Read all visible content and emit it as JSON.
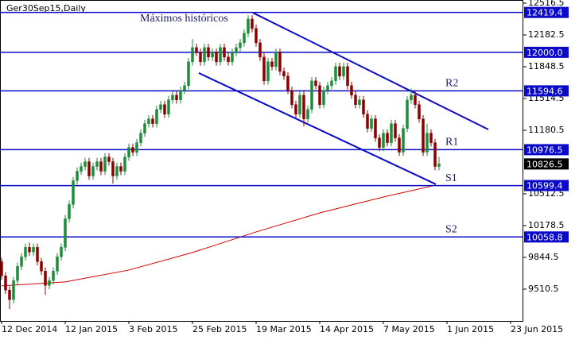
{
  "chart_data": {
    "type": "candlestick",
    "title": "Ger30Sep15,Daily",
    "annotation": "Máximos históricos",
    "xlim": [
      -0.4,
      131.2
    ],
    "ylim": [
      9176,
      12550
    ],
    "yticks": [
      12516.5,
      12182.5,
      11848.5,
      11514.5,
      11180.5,
      10512.5,
      10178.5,
      9844.5,
      9510.5
    ],
    "xticks": [
      {
        "value": 0,
        "label": "12 Dec 2014"
      },
      {
        "value": 16,
        "label": "12 Jan 2015"
      },
      {
        "value": 32,
        "label": "3 Feb 2015"
      },
      {
        "value": 48,
        "label": "25 Feb 2015"
      },
      {
        "value": 64,
        "label": "19 Mar 2015"
      },
      {
        "value": 80,
        "label": "14 Apr 2015"
      },
      {
        "value": 96,
        "label": "7 May 2015"
      },
      {
        "value": 112,
        "label": "1 Jun 2015"
      },
      {
        "value": 128,
        "label": "23 Jun 2015"
      }
    ],
    "up_color": "#1e8c3a",
    "down_color": "#8b0000",
    "level_color": "#0a0ac8",
    "candles": {
      "open": [
        9800,
        9650,
        9500,
        9400,
        9600,
        9750,
        9850,
        9950,
        9900,
        9950,
        9800,
        9700,
        9550,
        9600,
        9700,
        9850,
        9950,
        10250,
        10400,
        10650,
        10750,
        10800,
        10850,
        10700,
        10800,
        10850,
        10750,
        10900,
        10850,
        10700,
        10800,
        10750,
        10900,
        11000,
        10950,
        11050,
        11150,
        11250,
        11300,
        11250,
        11400,
        11450,
        11350,
        11500,
        11550,
        11500,
        11600,
        11650,
        11900,
        12050,
        12000,
        11900,
        12050,
        11950,
        12000,
        11900,
        12050,
        11950,
        11900,
        12000,
        12050,
        12100,
        12200,
        12350,
        12250,
        12100,
        11950,
        11700,
        11900,
        11850,
        12000,
        11800,
        11750,
        11600,
        11450,
        11350,
        11550,
        11300,
        11400,
        11700,
        11650,
        11450,
        11600,
        11650,
        11700,
        11850,
        11750,
        11850,
        11650,
        11550,
        11450,
        11500,
        11350,
        11200,
        11300,
        11100,
        11000,
        11150,
        11050,
        11250,
        11100,
        10950,
        11200,
        11500,
        11550,
        11450,
        11300,
        10950,
        11150,
        11050,
        10800
      ],
      "high": [
        9840,
        9690,
        9540,
        9640,
        9790,
        9890,
        9990,
        10000,
        9990,
        9990,
        9840,
        9740,
        9640,
        9740,
        9890,
        9990,
        10290,
        10440,
        10690,
        10790,
        10840,
        10890,
        10890,
        10840,
        10890,
        10890,
        10940,
        10940,
        10890,
        10840,
        10840,
        10940,
        11040,
        11040,
        11090,
        11190,
        11290,
        11340,
        11340,
        11440,
        11490,
        11490,
        11540,
        11590,
        11590,
        11640,
        11690,
        11940,
        12140,
        12090,
        12040,
        12090,
        12090,
        12040,
        12040,
        12090,
        12090,
        11990,
        12040,
        12090,
        12140,
        12240,
        12390,
        12390,
        12290,
        12140,
        11990,
        11940,
        11940,
        12040,
        12040,
        11840,
        11790,
        11640,
        11490,
        11590,
        11590,
        11440,
        11740,
        11740,
        11690,
        11640,
        11690,
        11740,
        11890,
        11890,
        11890,
        11890,
        11690,
        11590,
        11540,
        11540,
        11390,
        11340,
        11340,
        11140,
        11190,
        11190,
        11290,
        11290,
        11140,
        11240,
        11540,
        11620,
        11590,
        11490,
        11340,
        11250,
        11190,
        11090,
        10900
      ],
      "low": [
        9610,
        9460,
        9300,
        9360,
        9560,
        9710,
        9810,
        9860,
        9860,
        9760,
        9660,
        9450,
        9510,
        9560,
        9660,
        9810,
        9910,
        10210,
        10360,
        10610,
        10710,
        10760,
        10660,
        10660,
        10760,
        10710,
        10710,
        10810,
        10620,
        10660,
        10710,
        10710,
        10860,
        10910,
        10910,
        11010,
        11110,
        11210,
        11210,
        11210,
        11360,
        11310,
        11310,
        11460,
        11460,
        11460,
        11560,
        11610,
        11860,
        11960,
        11860,
        11860,
        11910,
        11910,
        11860,
        11860,
        11910,
        11860,
        11860,
        11960,
        12010,
        12060,
        12160,
        12210,
        12060,
        11910,
        11660,
        11660,
        11810,
        11810,
        11760,
        11710,
        11560,
        11410,
        11310,
        11310,
        11220,
        11260,
        11360,
        11610,
        11410,
        11410,
        11560,
        11610,
        11660,
        11710,
        11710,
        11610,
        11510,
        11410,
        11410,
        11310,
        11160,
        11160,
        11060,
        10960,
        10960,
        11010,
        11010,
        11060,
        10910,
        10910,
        11160,
        11460,
        11410,
        11260,
        10910,
        10910,
        11010,
        10760,
        10760
      ],
      "close": [
        9650,
        9500,
        9400,
        9600,
        9750,
        9850,
        9950,
        9900,
        9950,
        9800,
        9700,
        9550,
        9600,
        9700,
        9850,
        9950,
        10250,
        10400,
        10650,
        10750,
        10800,
        10850,
        10700,
        10800,
        10850,
        10750,
        10900,
        10850,
        10700,
        10800,
        10750,
        10900,
        11000,
        10950,
        11050,
        11150,
        11250,
        11300,
        11250,
        11400,
        11450,
        11350,
        11500,
        11550,
        11500,
        11600,
        11650,
        11900,
        12050,
        12000,
        11900,
        12050,
        11950,
        12000,
        11900,
        12050,
        11950,
        11900,
        12000,
        12050,
        12100,
        12200,
        12350,
        12250,
        12100,
        11950,
        11700,
        11900,
        11850,
        12000,
        11800,
        11750,
        11600,
        11450,
        11350,
        11550,
        11300,
        11400,
        11700,
        11650,
        11450,
        11600,
        11650,
        11700,
        11850,
        11750,
        11850,
        11650,
        11550,
        11450,
        11500,
        11350,
        11200,
        11300,
        11100,
        11000,
        11150,
        11050,
        11250,
        11100,
        10950,
        11200,
        11500,
        11550,
        11450,
        11300,
        10950,
        11150,
        11050,
        10800,
        10826.5
      ]
    },
    "moving_average": {
      "color": "#d40000",
      "x": [
        0,
        16,
        32,
        48,
        64,
        80,
        96,
        109.2
      ],
      "values": [
        9544,
        9586,
        9711,
        9895,
        10112,
        10312,
        10479,
        10604
      ]
    },
    "trendlines": [
      {
        "x": [
          63.2,
          122.4
        ],
        "values": [
          12416,
          11189
        ]
      },
      {
        "x": [
          49.6,
          109.2
        ],
        "values": [
          11782,
          10613
        ]
      }
    ],
    "levels": [
      {
        "value": 12419.4
      },
      {
        "value": 12000,
        "label": "12000.0"
      },
      {
        "value": 11594.6,
        "name": "R2"
      },
      {
        "value": 10976.5,
        "name": "R1"
      },
      {
        "value": 10599.4,
        "name": "S1"
      },
      {
        "value": 10058.8,
        "name": "S2"
      }
    ]
  }
}
